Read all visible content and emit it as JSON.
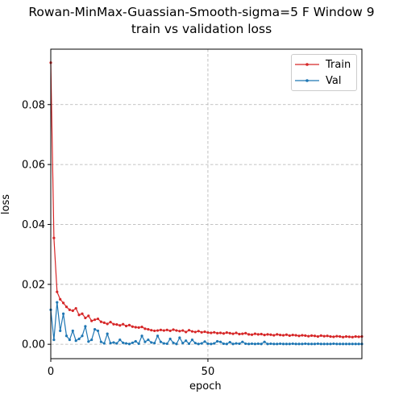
{
  "chart_data": {
    "type": "line",
    "title_lines": [
      "Rowan-MinMax-Guassian-Smooth-sigma=5 F Window 9",
      "train vs validation loss"
    ],
    "xlabel": "epoch",
    "ylabel": "loss",
    "xlim": [
      0,
      99
    ],
    "ylim": [
      -0.0048,
      0.0985
    ],
    "xticks": [
      0,
      50
    ],
    "xtick_labels": [
      "0",
      "50"
    ],
    "yticks": [
      0.0,
      0.02,
      0.04,
      0.06,
      0.08
    ],
    "ytick_labels": [
      "0.00",
      "0.02",
      "0.04",
      "0.06",
      "0.08"
    ],
    "grid": true,
    "legend_position": "top-right",
    "series": [
      {
        "name": "Train",
        "color": "#d62728",
        "values": [
          0.094,
          0.0355,
          0.0175,
          0.015,
          0.0138,
          0.0125,
          0.0115,
          0.0112,
          0.012,
          0.0098,
          0.0102,
          0.0088,
          0.0095,
          0.0078,
          0.0082,
          0.0085,
          0.0075,
          0.0072,
          0.0068,
          0.0074,
          0.0067,
          0.0066,
          0.0063,
          0.0067,
          0.0061,
          0.0064,
          0.0059,
          0.0057,
          0.0056,
          0.0058,
          0.0052,
          0.005,
          0.0047,
          0.0045,
          0.0046,
          0.0048,
          0.0046,
          0.0048,
          0.0045,
          0.0049,
          0.0046,
          0.0044,
          0.0046,
          0.0041,
          0.0047,
          0.0043,
          0.0041,
          0.0044,
          0.004,
          0.0042,
          0.0039,
          0.0038,
          0.004,
          0.0037,
          0.0038,
          0.0036,
          0.0039,
          0.0037,
          0.0035,
          0.0038,
          0.0034,
          0.0035,
          0.0037,
          0.0033,
          0.0032,
          0.0035,
          0.0033,
          0.0034,
          0.0031,
          0.0033,
          0.0032,
          0.003,
          0.0033,
          0.0031,
          0.003,
          0.0032,
          0.0029,
          0.0031,
          0.003,
          0.0028,
          0.003,
          0.0029,
          0.0027,
          0.0029,
          0.0028,
          0.0026,
          0.0029,
          0.0027,
          0.0028,
          0.0026,
          0.0025,
          0.0027,
          0.0026,
          0.0024,
          0.0026,
          0.0025,
          0.0024,
          0.0026,
          0.0025,
          0.0026
        ]
      },
      {
        "name": "Val",
        "color": "#1f77b4",
        "values": [
          0.0115,
          0.0015,
          0.014,
          0.0045,
          0.0102,
          0.0028,
          0.0015,
          0.0045,
          0.0012,
          0.0018,
          0.0028,
          0.006,
          0.0009,
          0.0015,
          0.005,
          0.0045,
          0.0008,
          0.0003,
          0.0035,
          0.0004,
          0.0006,
          0.0003,
          0.0015,
          0.0005,
          0.0003,
          0.0001,
          0.0005,
          0.001,
          0.0002,
          0.0028,
          0.0008,
          0.0015,
          0.0006,
          0.0004,
          0.0028,
          0.0008,
          0.0003,
          0.0002,
          0.0018,
          0.0005,
          0.0001,
          0.0022,
          0.0004,
          0.0012,
          0.0002,
          0.0015,
          0.0004,
          0.0001,
          0.0003,
          0.0009,
          0.0002,
          0.0001,
          0.0003,
          0.001,
          0.0008,
          0.0002,
          0.0001,
          0.0007,
          0.0001,
          0.0003,
          0.0002,
          0.0008,
          0.0002,
          0.0001,
          0.0002,
          0.0001,
          0.0002,
          0.0001,
          0.0008,
          0.0001,
          0.0002,
          0.0001,
          0.0001,
          0.0002,
          0.0001,
          0.0001,
          0.0001,
          0.0002,
          0.0001,
          0.0001,
          0.0001,
          0.0002,
          0.0001,
          0.0001,
          0.0001,
          0.0002,
          0.0001,
          0.0001,
          0.0001,
          0.0001,
          0.0002,
          0.0001,
          0.0001,
          0.0001,
          0.0001,
          0.0001,
          0.0001,
          0.0001,
          0.0001,
          0.0001
        ]
      }
    ]
  }
}
